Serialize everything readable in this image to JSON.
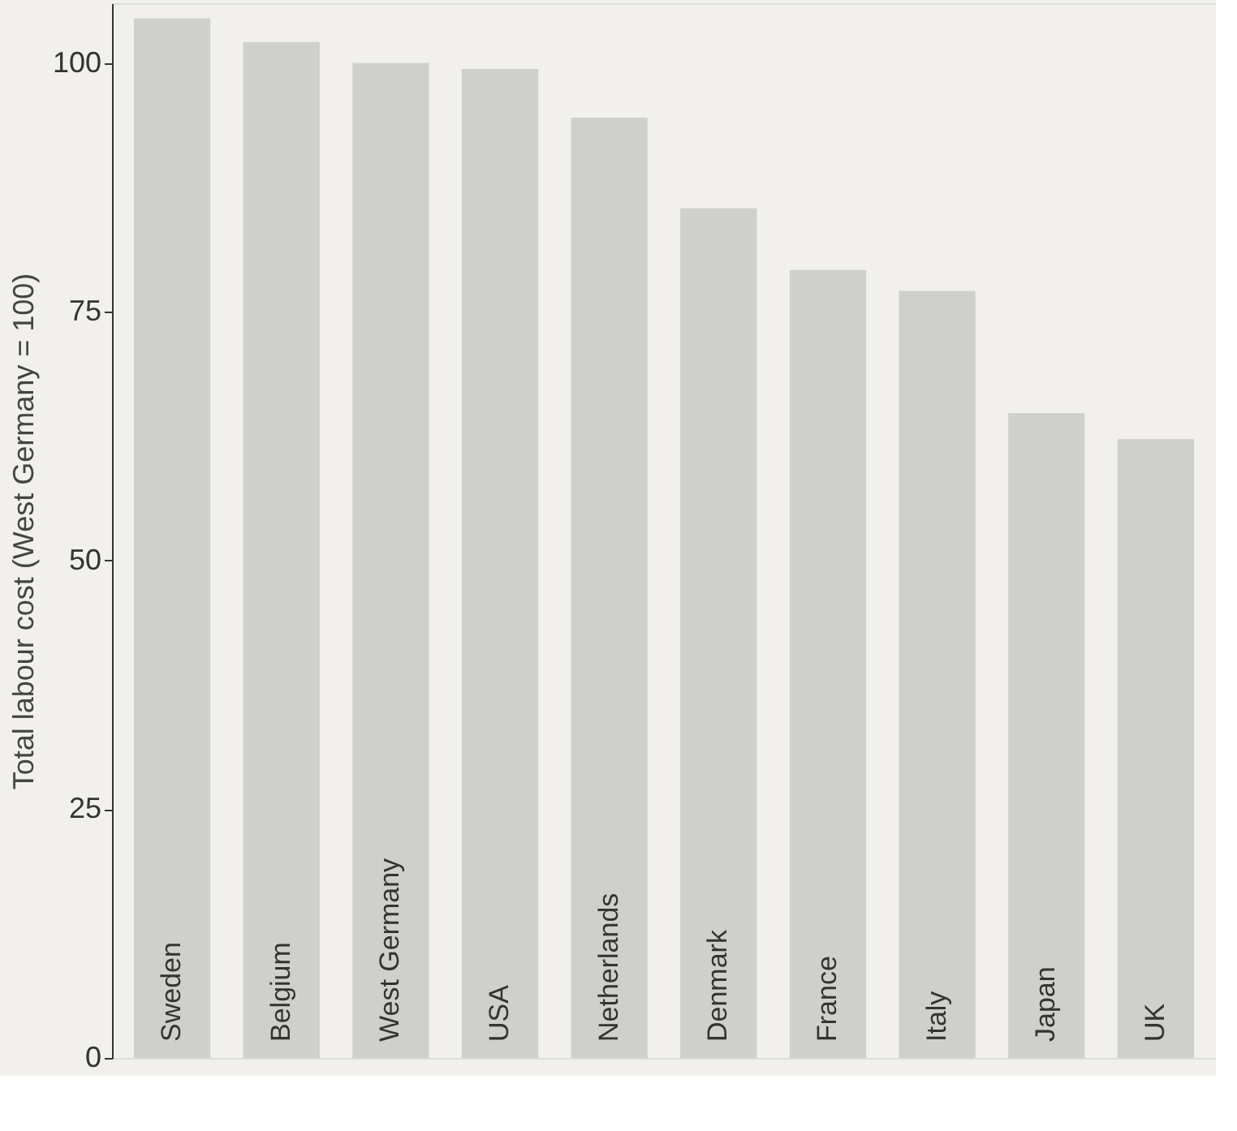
{
  "chart_data": {
    "type": "bar",
    "ylabel": "Total labour cost (West Germany = 100)",
    "categories": [
      "Sweden",
      "Belgium",
      "West Germany",
      "USA",
      "Netherlands",
      "Denmark",
      "France",
      "Italy",
      "Japan",
      "UK"
    ],
    "values": [
      104.5,
      102.1,
      100,
      99.4,
      94.5,
      85.4,
      79.2,
      77.1,
      64.8,
      62.2
    ],
    "colors": [
      "#cfcfcc",
      "#cfcfcc",
      "#cfcfcc",
      "#cfcfcc",
      "#cfcfcc",
      "#cfcfcc",
      "#cfcfcc",
      "#cfcfcc",
      "#cfcfcc",
      "#cfcfcc"
    ],
    "ylim": [
      0,
      106
    ],
    "yticks": [
      0,
      25,
      50,
      75,
      100
    ],
    "grid": false
  }
}
